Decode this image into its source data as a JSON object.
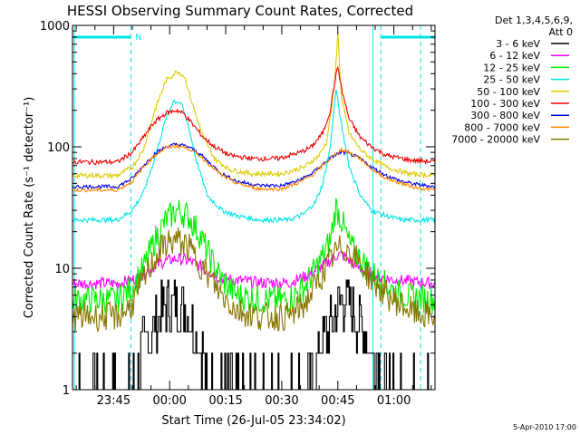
{
  "chart_data": {
    "type": "line",
    "title": "HESSI Observing Summary Count Rates, Corrected",
    "xlabel": "Start Time (26-Jul-05 23:34:02)",
    "ylabel": "Corrected Count Rate (s⁻¹ detector⁻¹)",
    "ylog": true,
    "ylim": [
      1,
      1000
    ],
    "xlim": [
      0,
      97
    ],
    "x_unit": "minutes since 23:34:02",
    "yticks": [
      {
        "label": "1",
        "value": 1
      },
      {
        "label": "10",
        "value": 10
      },
      {
        "label": "100",
        "value": 100
      },
      {
        "label": "1000",
        "value": 1000
      }
    ],
    "xticks": [
      {
        "label": "23:45",
        "value": 11
      },
      {
        "label": "00:00",
        "value": 26
      },
      {
        "label": "00:15",
        "value": 41
      },
      {
        "label": "00:30",
        "value": 56
      },
      {
        "label": "00:45",
        "value": 71
      },
      {
        "label": "01:00",
        "value": 86
      }
    ],
    "legend_header": [
      "Det 1,3,4,5,6,9,",
      "Att 0"
    ],
    "legend_position": "right",
    "footer_date": "5-Apr-2010 17:00",
    "night_marker_label": "N",
    "night_intervals": [
      [
        0,
        15.6
      ],
      [
        82.5,
        97
      ]
    ],
    "night_color": "#00e5e5",
    "saa_line": 80.4,
    "series": [
      {
        "name": "3 - 6 keV",
        "color": "#000000",
        "x": [
          15,
          17,
          19,
          21,
          23,
          25,
          27,
          29,
          31,
          33,
          35,
          36,
          40,
          60,
          64,
          66,
          68,
          70,
          72,
          74,
          76,
          78,
          80,
          82,
          84,
          86,
          90
        ],
        "y": [
          1,
          1.5,
          2.2,
          3,
          4,
          4.8,
          5.2,
          5,
          4.2,
          3,
          2,
          1,
          1,
          1,
          1.3,
          2,
          3,
          4.2,
          5.6,
          5,
          4,
          2.8,
          2,
          1.5,
          1,
          1,
          1
        ]
      },
      {
        "name": "6 - 12 keV",
        "color": "#ff00ff",
        "x": [
          0,
          12,
          16,
          19,
          22,
          25,
          28,
          31,
          34,
          37,
          40,
          50,
          58,
          62,
          66,
          69,
          71,
          73,
          75,
          78,
          82,
          86,
          97
        ],
        "y": [
          7.5,
          7.5,
          8,
          9,
          10.5,
          11.5,
          12,
          11.5,
          10.5,
          9.2,
          8.2,
          7.6,
          7.6,
          8.5,
          10,
          11.5,
          13,
          12.5,
          11,
          9.5,
          8.5,
          8,
          7.5
        ]
      },
      {
        "name": "12 - 25 keV",
        "color": "#00ee00",
        "x": [
          0,
          12,
          16,
          19,
          22,
          25,
          28,
          31,
          34,
          37,
          40,
          44,
          50,
          58,
          62,
          66,
          69,
          70.5,
          72,
          74,
          76,
          79,
          82,
          86,
          90,
          97
        ],
        "y": [
          5.5,
          5.5,
          7,
          10,
          17,
          25,
          30,
          27,
          19,
          12,
          8,
          6,
          5.5,
          5.5,
          7,
          11,
          17,
          32,
          25,
          16,
          13,
          10,
          8,
          6.5,
          5.8,
          5.5
        ]
      },
      {
        "name": "25 - 50 keV",
        "color": "#00e5e5",
        "x": [
          0,
          12,
          16,
          19,
          22,
          25,
          27,
          29,
          31,
          33,
          36,
          40,
          44,
          50,
          58,
          62,
          65,
          67,
          69,
          70.5,
          72,
          74,
          77,
          80,
          84,
          88,
          97
        ],
        "y": [
          25,
          25,
          30,
          42,
          80,
          170,
          240,
          230,
          150,
          80,
          40,
          30,
          27,
          25,
          25,
          28,
          35,
          50,
          100,
          300,
          150,
          70,
          40,
          30,
          27,
          25,
          25
        ]
      },
      {
        "name": "50 - 100 keV",
        "color": "#ddcc00",
        "x": [
          0,
          12,
          16,
          19,
          22,
          25,
          28,
          30,
          32,
          35,
          38,
          42,
          48,
          56,
          62,
          66,
          68,
          70,
          71,
          72,
          74,
          77,
          80,
          84,
          90,
          97
        ],
        "y": [
          58,
          58,
          68,
          95,
          200,
          350,
          420,
          380,
          230,
          120,
          80,
          65,
          60,
          60,
          68,
          85,
          110,
          300,
          850,
          250,
          130,
          95,
          80,
          68,
          60,
          58
        ]
      },
      {
        "name": "100 - 300 keV",
        "color": "#ee0000",
        "x": [
          0,
          12,
          16,
          19,
          22,
          25,
          28,
          30,
          32,
          35,
          38,
          42,
          48,
          55,
          61,
          64,
          67,
          69,
          70,
          71,
          72,
          74,
          77,
          80,
          84,
          90,
          97
        ],
        "y": [
          75,
          75,
          90,
          120,
          160,
          190,
          200,
          185,
          155,
          120,
          100,
          85,
          80,
          80,
          90,
          100,
          130,
          200,
          320,
          460,
          300,
          170,
          120,
          100,
          85,
          78,
          75
        ]
      },
      {
        "name": "300 - 800 keV",
        "color": "#0000ee",
        "x": [
          0,
          12,
          16,
          19,
          22,
          25,
          28,
          31,
          34,
          37,
          40,
          44,
          50,
          56,
          60,
          64,
          67,
          70,
          72,
          74,
          77,
          80,
          84,
          88,
          92,
          97
        ],
        "y": [
          47,
          47,
          55,
          70,
          88,
          100,
          105,
          100,
          88,
          72,
          60,
          52,
          48,
          48,
          52,
          60,
          72,
          85,
          90,
          88,
          80,
          68,
          58,
          52,
          49,
          47
        ]
      },
      {
        "name": "800 - 7000 keV",
        "color": "#ff8800",
        "x": [
          0,
          12,
          16,
          19,
          22,
          25,
          28,
          31,
          34,
          37,
          40,
          44,
          50,
          56,
          60,
          64,
          67,
          70,
          72,
          74,
          77,
          80,
          84,
          88,
          92,
          97
        ],
        "y": [
          44,
          44,
          52,
          68,
          85,
          98,
          102,
          97,
          85,
          70,
          58,
          50,
          45,
          45,
          50,
          58,
          70,
          85,
          95,
          90,
          80,
          66,
          55,
          50,
          46,
          44
        ]
      },
      {
        "name": "7000 - 20000 keV",
        "color": "#887700",
        "x": [
          0,
          12,
          16,
          19,
          22,
          25,
          28,
          31,
          34,
          37,
          40,
          44,
          50,
          58,
          62,
          66,
          70,
          72,
          74,
          77,
          80,
          84,
          88,
          92,
          97
        ],
        "y": [
          4,
          4,
          5,
          8,
          12,
          16,
          17,
          15,
          11,
          8,
          6,
          4.5,
          4,
          4,
          5,
          8,
          13,
          15,
          14,
          11,
          8,
          6,
          5,
          4.2,
          4
        ]
      }
    ]
  }
}
